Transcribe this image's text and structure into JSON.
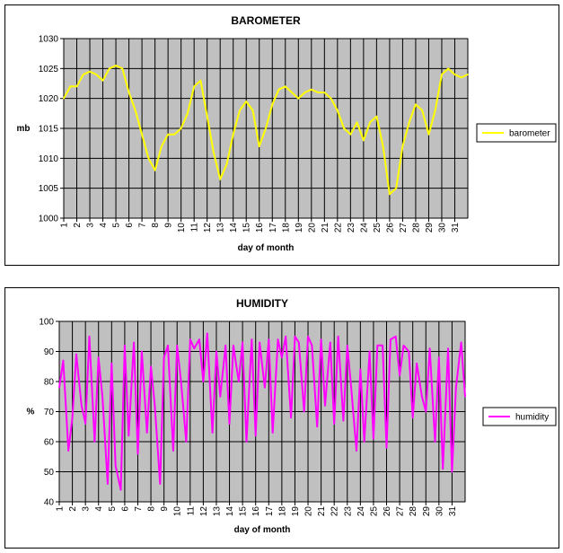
{
  "chart_data": [
    {
      "type": "line",
      "title": "BAROMETER",
      "xlabel": "day of month",
      "ylabel": "mb",
      "ylim": [
        1000,
        1030
      ],
      "yticks": [
        1000,
        1005,
        1010,
        1015,
        1020,
        1025,
        1030
      ],
      "xlim": [
        1,
        32
      ],
      "categories": [
        "1",
        "2",
        "3",
        "4",
        "5",
        "6",
        "7",
        "8",
        "9",
        "10",
        "11",
        "12",
        "13",
        "14",
        "15",
        "16",
        "17",
        "18",
        "19",
        "20",
        "21",
        "22",
        "23",
        "24",
        "25",
        "26",
        "27",
        "28",
        "29",
        "30",
        "31"
      ],
      "grid": true,
      "legend_position": "right",
      "colors": {
        "plot_bg": "#c0c0c0",
        "series": "#ffff00",
        "grid": "#000000"
      },
      "series": [
        {
          "name": "barometer",
          "x": [
            1.0,
            1.5,
            2.0,
            2.5,
            3.0,
            3.5,
            4.0,
            4.5,
            5.0,
            5.5,
            6.0,
            6.5,
            7.0,
            7.5,
            8.0,
            8.5,
            9.0,
            9.5,
            10.0,
            10.5,
            11.0,
            11.5,
            12.0,
            12.5,
            13.0,
            13.5,
            14.0,
            14.5,
            15.0,
            15.5,
            16.0,
            16.5,
            17.0,
            17.5,
            18.0,
            18.5,
            19.0,
            19.5,
            20.0,
            20.5,
            21.0,
            21.5,
            22.0,
            22.5,
            23.0,
            23.5,
            24.0,
            24.5,
            25.0,
            25.5,
            26.0,
            26.5,
            27.0,
            27.5,
            28.0,
            28.5,
            29.0,
            29.5,
            30.0,
            30.5,
            31.0,
            31.5,
            32.0
          ],
          "values": [
            1020,
            1022,
            1022,
            1024,
            1024.5,
            1024,
            1023,
            1025,
            1025.5,
            1025,
            1021,
            1018,
            1014,
            1010,
            1008,
            1012,
            1014,
            1014,
            1015,
            1017.5,
            1022,
            1023,
            1017,
            1011,
            1006.5,
            1009,
            1014,
            1018,
            1019.5,
            1018,
            1012,
            1015,
            1019,
            1021.5,
            1022,
            1021,
            1020,
            1021,
            1021.5,
            1021,
            1021,
            1020,
            1018,
            1015,
            1014,
            1016,
            1013,
            1016,
            1017,
            1012,
            1004,
            1005,
            1012,
            1016,
            1019,
            1018,
            1014,
            1018,
            1024,
            1025,
            1024,
            1023.5,
            1024
          ]
        }
      ]
    },
    {
      "type": "line",
      "title": "HUMIDITY",
      "xlabel": "day of month",
      "ylabel": "%",
      "ylim": [
        40,
        100
      ],
      "yticks": [
        40,
        50,
        60,
        70,
        80,
        90,
        100
      ],
      "xlim": [
        1,
        32
      ],
      "categories": [
        "1",
        "2",
        "3",
        "4",
        "5",
        "6",
        "7",
        "8",
        "9",
        "10",
        "11",
        "12",
        "13",
        "14",
        "15",
        "16",
        "17",
        "18",
        "19",
        "20",
        "21",
        "22",
        "23",
        "24",
        "25",
        "26",
        "27",
        "28",
        "29",
        "30",
        "31"
      ],
      "grid": true,
      "legend_position": "right",
      "colors": {
        "plot_bg": "#c0c0c0",
        "series": "#ff00ff",
        "grid": "#000000"
      },
      "series": [
        {
          "name": "humidity",
          "x": [
            1.0,
            1.3,
            1.7,
            2.0,
            2.3,
            2.7,
            3.0,
            3.3,
            3.7,
            4.0,
            4.3,
            4.7,
            5.0,
            5.3,
            5.7,
            6.0,
            6.3,
            6.7,
            7.0,
            7.3,
            7.7,
            8.0,
            8.3,
            8.7,
            9.0,
            9.3,
            9.7,
            10.0,
            10.3,
            10.7,
            11.0,
            11.3,
            11.7,
            12.0,
            12.3,
            12.7,
            13.0,
            13.3,
            13.7,
            14.0,
            14.3,
            14.7,
            15.0,
            15.3,
            15.7,
            16.0,
            16.3,
            16.7,
            17.0,
            17.3,
            17.7,
            18.0,
            18.3,
            18.7,
            19.0,
            19.3,
            19.7,
            20.0,
            20.3,
            20.7,
            21.0,
            21.3,
            21.7,
            22.0,
            22.3,
            22.7,
            23.0,
            23.3,
            23.7,
            24.0,
            24.3,
            24.7,
            25.0,
            25.3,
            25.7,
            26.0,
            26.3,
            26.7,
            27.0,
            27.3,
            27.7,
            28.0,
            28.3,
            28.7,
            29.0,
            29.3,
            29.7,
            30.0,
            30.3,
            30.7,
            31.0,
            31.3,
            31.7,
            32.0
          ],
          "values": [
            78,
            87,
            57,
            68,
            89,
            72,
            66,
            95,
            60,
            88,
            75,
            46,
            86,
            52,
            44,
            92,
            62,
            93,
            56,
            90,
            63,
            85,
            72,
            46,
            88,
            92,
            57,
            92,
            80,
            60,
            94,
            91,
            94,
            80,
            96,
            63,
            90,
            75,
            92,
            66,
            92,
            80,
            93,
            60,
            94,
            62,
            93,
            78,
            94,
            63,
            94,
            88,
            95,
            68,
            95,
            93,
            70,
            95,
            92,
            65,
            94,
            72,
            93,
            66,
            95,
            67,
            92,
            78,
            57,
            84,
            60,
            90,
            61,
            92,
            92,
            58,
            94,
            95,
            82,
            92,
            90,
            68,
            86,
            75,
            70,
            91,
            60,
            88,
            51,
            91,
            50,
            78,
            93,
            75
          ]
        }
      ]
    }
  ]
}
